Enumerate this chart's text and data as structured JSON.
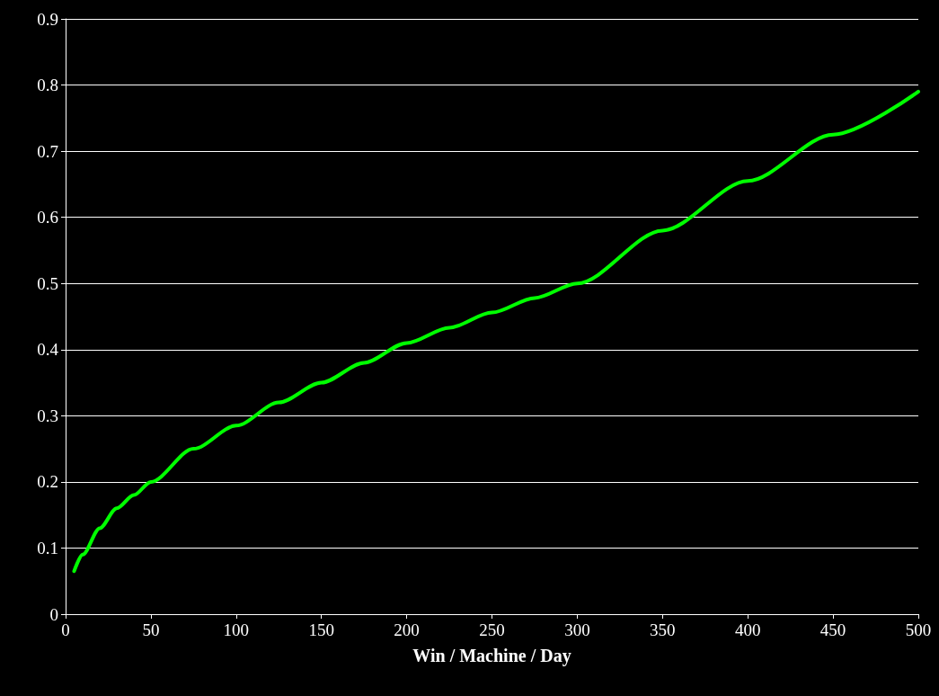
{
  "chart_data": {
    "type": "line",
    "xlabel": "Win / Machine / Day",
    "x": [
      5,
      10,
      20,
      30,
      40,
      50,
      75,
      100,
      125,
      150,
      175,
      200,
      225,
      250,
      275,
      300,
      350,
      400,
      450,
      500
    ],
    "series": [
      {
        "color": "#00ff00",
        "values": [
          0.065,
          0.09,
          0.13,
          0.16,
          0.18,
          0.2,
          0.25,
          0.285,
          0.32,
          0.35,
          0.38,
          0.41,
          0.433,
          0.456,
          0.478,
          0.5,
          0.58,
          0.655,
          0.725,
          0.79
        ]
      }
    ],
    "xlim": [
      0,
      500
    ],
    "xticks": [
      0,
      50,
      100,
      150,
      200,
      250,
      300,
      350,
      400,
      450,
      500
    ],
    "ylim": [
      0,
      0.9
    ],
    "yticks": [
      0,
      0.1,
      0.2,
      0.3,
      0.4,
      0.5,
      0.6,
      0.7,
      0.8,
      0.9
    ],
    "grid": "y",
    "marker": "none",
    "line_style": "solid"
  }
}
